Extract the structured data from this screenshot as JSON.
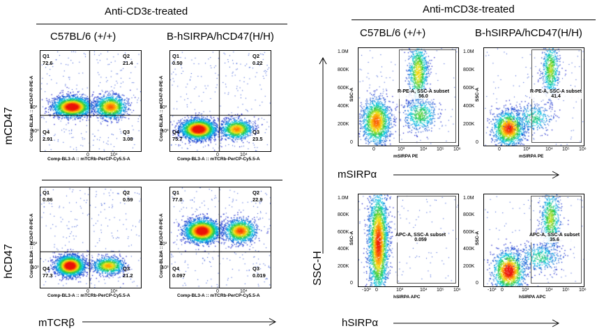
{
  "left_panel": {
    "header": "Anti-CD3ε-treated",
    "col_labels": [
      "C57BL/6 (+/+)",
      "B-hSIRPA/hCD47(H/H)"
    ],
    "row_labels": [
      "mCD47",
      "hCD47"
    ],
    "x_axis_label": "mTCRβ"
  },
  "right_panel": {
    "header": "Anti-mCD3ε-treated",
    "col_labels": [
      "C57BL/6 (+/+)",
      "B-hSIRPA/hCD47(H/H)"
    ],
    "y_axis_label": "SSC-H",
    "row_axis_labels": [
      "mSIRPα",
      "hSIRPα"
    ]
  },
  "chart_data": [
    {
      "type": "scatter",
      "subtype": "flow-cytometry-quadrant",
      "group": "Anti-CD3ε-treated",
      "row": "mCD47",
      "column": "C57BL/6 (+/+)",
      "xlabel": "Comp-BL3-A :: mTCRb-PerCP-Cy5.5-A",
      "ylabel": "Comp-BL2-A :: mCD47-R-PE-A",
      "x_ticks": [
        "0",
        "10⁴"
      ],
      "y_ticks": [
        "-10³",
        "0",
        "10³"
      ],
      "quadrants": [
        {
          "name": "Q1",
          "value": "72.6"
        },
        {
          "name": "Q2",
          "value": "21.4"
        },
        {
          "name": "Q3",
          "value": "3.08"
        },
        {
          "name": "Q4",
          "value": "2.91"
        }
      ]
    },
    {
      "type": "scatter",
      "subtype": "flow-cytometry-quadrant",
      "group": "Anti-CD3ε-treated",
      "row": "mCD47",
      "column": "B-hSIRPA/hCD47(H/H)",
      "xlabel": "Comp-BL3-A :: mTCRb-PerCP-Cy5.5-A",
      "ylabel": "Comp-BL2-A :: mCD47-R-PE-A",
      "x_ticks": [
        "0",
        "10⁴"
      ],
      "y_ticks": [
        "-10³",
        "0",
        "10³"
      ],
      "quadrants": [
        {
          "name": "Q1",
          "value": "0.50"
        },
        {
          "name": "Q2",
          "value": "0.22"
        },
        {
          "name": "Q3",
          "value": "23.5"
        },
        {
          "name": "Q4",
          "value": "75.7"
        }
      ]
    },
    {
      "type": "scatter",
      "subtype": "flow-cytometry-quadrant",
      "group": "Anti-CD3ε-treated",
      "row": "hCD47",
      "column": "C57BL/6 (+/+)",
      "xlabel": "Comp-BL3-A :: mTCRb-PerCP-Cy5.5-A",
      "ylabel": "Comp-BL2-A :: hCD47-R-PE-A",
      "x_ticks": [
        "0",
        "10⁴"
      ],
      "y_ticks": [
        "-10³",
        "0",
        "10³"
      ],
      "quadrants": [
        {
          "name": "Q1",
          "value": "0.86"
        },
        {
          "name": "Q2",
          "value": "0.59"
        },
        {
          "name": "Q3",
          "value": "21.2"
        },
        {
          "name": "Q4",
          "value": "77.3"
        }
      ]
    },
    {
      "type": "scatter",
      "subtype": "flow-cytometry-quadrant",
      "group": "Anti-CD3ε-treated",
      "row": "hCD47",
      "column": "B-hSIRPA/hCD47(H/H)",
      "xlabel": "Comp-BL3-A :: mTCRb-PerCP-Cy5.5-A",
      "ylabel": "Comp-BL2-A :: hCD47-R-PE-A",
      "x_ticks": [
        "0",
        "10⁴"
      ],
      "y_ticks": [
        "-10³",
        "0",
        "10³"
      ],
      "quadrants": [
        {
          "name": "Q1",
          "value": "77.0"
        },
        {
          "name": "Q2",
          "value": "22.9"
        },
        {
          "name": "Q3",
          "value": "0.019"
        },
        {
          "name": "Q4",
          "value": "0.097"
        }
      ]
    },
    {
      "type": "scatter",
      "subtype": "flow-cytometry-gate",
      "group": "Anti-mCD3ε-treated",
      "row": "mSIRPα",
      "column": "C57BL/6 (+/+)",
      "xlabel": "mSIRPA PE",
      "ylabel": "SSC-A",
      "x_ticks": [
        "0",
        "10³",
        "10⁴",
        "10⁵",
        "10⁶"
      ],
      "y_ticks": [
        "0",
        "200K",
        "400K",
        "600K",
        "800K",
        "1.0M"
      ],
      "gate": {
        "label": "R-PE-A, SSC-A subset",
        "value": "56.0"
      }
    },
    {
      "type": "scatter",
      "subtype": "flow-cytometry-gate",
      "group": "Anti-mCD3ε-treated",
      "row": "mSIRPα",
      "column": "B-hSIRPA/hCD47(H/H)",
      "xlabel": "mSIRPA PE",
      "ylabel": "SSC-A",
      "x_ticks": [
        "0",
        "10³",
        "10⁴",
        "10⁵",
        "10⁶"
      ],
      "y_ticks": [
        "0",
        "200K",
        "400K",
        "600K",
        "800K",
        "1.0M"
      ],
      "gate": {
        "label": "R-PE-A, SSC-A subset",
        "value": "41.4"
      }
    },
    {
      "type": "scatter",
      "subtype": "flow-cytometry-gate",
      "group": "Anti-mCD3ε-treated",
      "row": "hSIRPα",
      "column": "C57BL/6 (+/+)",
      "xlabel": "hSIRPA APC",
      "ylabel": "SSC-A",
      "x_ticks": [
        "-10³",
        "0",
        "10³",
        "10⁴",
        "10⁵",
        "10⁶"
      ],
      "y_ticks": [
        "0",
        "200K",
        "400K",
        "600K",
        "800K",
        "1.0M"
      ],
      "gate": {
        "label": "APC-A, SSC-A subset",
        "value": "0.059"
      }
    },
    {
      "type": "scatter",
      "subtype": "flow-cytometry-gate",
      "group": "Anti-mCD3ε-treated",
      "row": "hSIRPα",
      "column": "B-hSIRPA/hCD47(H/H)",
      "xlabel": "hSIRPA APC",
      "ylabel": "SSC-A",
      "x_ticks": [
        "-10³",
        "0",
        "10³",
        "10⁴",
        "10⁵",
        "10⁶"
      ],
      "y_ticks": [
        "0",
        "200K",
        "400K",
        "600K",
        "800K",
        "1.0M"
      ],
      "gate": {
        "label": "APC-A, SSC-A subset",
        "value": "35.6"
      }
    }
  ]
}
